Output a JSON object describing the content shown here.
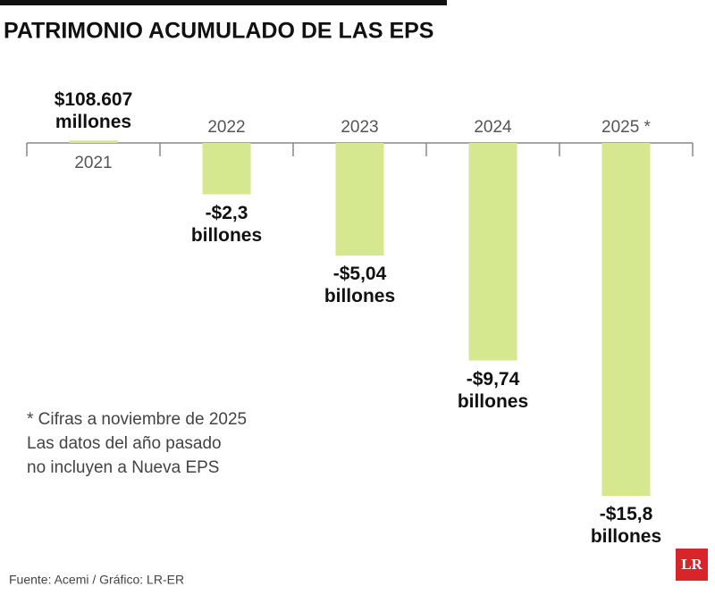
{
  "chart_data": {
    "type": "bar",
    "title": "PATRIMONIO ACUMULADO DE LAS EPS",
    "categories": [
      "2021",
      "2022",
      "2023",
      "2024",
      "2025 *"
    ],
    "values": [
      0.108607,
      -2.3,
      -5.04,
      -9.74,
      -15.8
    ],
    "value_labels": [
      "$108.607 millones",
      "-$2,3 billones",
      "-$5,04 billones",
      "-$9,74 billones",
      "-$15,8 billones"
    ],
    "color": "#d5e78f",
    "ylim": [
      -16,
      0.5
    ],
    "notes": [
      "* Cifras a noviembre de 2025",
      "Las datos del año pasado",
      "no incluyen a Nueva EPS"
    ],
    "source": "Fuente:  Acemi / Gráfico: LR-ER",
    "logo": "LR"
  }
}
